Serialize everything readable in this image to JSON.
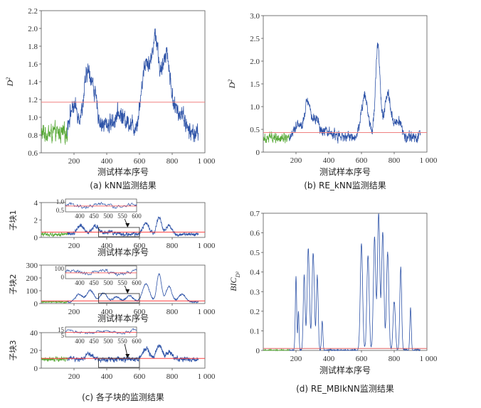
{
  "chart_data": [
    {
      "id": "a",
      "type": "line",
      "caption": "(a) kNN监测结果",
      "xlabel": "测试样本序号",
      "ylabel_main": "D",
      "ylabel_sup": "2",
      "xlim": [
        0,
        1000
      ],
      "ylim": [
        0.6,
        2.2
      ],
      "xticks": [
        200,
        400,
        600,
        800
      ],
      "xticks_last": "1 000",
      "yticks": [
        "0.6",
        "0.8",
        "1.0",
        "1.2",
        "1.4",
        "1.6",
        "1.8",
        "2.0",
        "2.2"
      ],
      "threshold": 1.17,
      "base": 0.82,
      "noise": 0.07,
      "peaks": [
        [
          200,
          0.3,
          40
        ],
        [
          280,
          0.6,
          30
        ],
        [
          320,
          0.4,
          30
        ],
        [
          400,
          0.1,
          60
        ],
        [
          480,
          0.2,
          40
        ],
        [
          540,
          0.1,
          30
        ],
        [
          640,
          0.8,
          40
        ],
        [
          700,
          1.0,
          30
        ],
        [
          760,
          0.8,
          30
        ],
        [
          800,
          0.3,
          40
        ],
        [
          860,
          0.2,
          30
        ]
      ],
      "colors": {
        "normal": "#5aaa3a",
        "fault": "#2f54a8",
        "limit": "#f08080"
      }
    },
    {
      "id": "b",
      "type": "line",
      "caption": "(b) RE_kNN监测结果",
      "xlabel": "测试样本序号",
      "ylabel_main": "D",
      "ylabel_sup": "2",
      "xlim": [
        0,
        1000
      ],
      "ylim": [
        0,
        3.0
      ],
      "xticks": [
        200,
        400,
        600,
        800
      ],
      "xticks_last": "1 000",
      "yticks": [
        "0",
        "0.5",
        "1.0",
        "1.5",
        "2.0",
        "2.5",
        "3.0"
      ],
      "threshold": 0.43,
      "base": 0.33,
      "noise": 0.08,
      "peaks": [
        [
          210,
          0.3,
          30
        ],
        [
          270,
          0.8,
          25
        ],
        [
          320,
          0.4,
          30
        ],
        [
          400,
          0.1,
          40
        ],
        [
          620,
          0.9,
          30
        ],
        [
          700,
          2.0,
          20
        ],
        [
          760,
          1.0,
          25
        ],
        [
          820,
          0.4,
          30
        ]
      ],
      "colors": {
        "normal": "#5aaa3a",
        "fault": "#2f54a8",
        "limit": "#f08080"
      }
    },
    {
      "id": "c1",
      "type": "line",
      "block_label": "子块1",
      "xlabel": "测试样本序号",
      "xlim": [
        0,
        1000
      ],
      "ylim": [
        0,
        4
      ],
      "xticks": [
        200,
        400,
        600,
        800
      ],
      "xticks_last": "1 000",
      "yticks": [
        "0",
        "2",
        "4"
      ],
      "threshold": 0.6,
      "base": 0.35,
      "noise": 0.15,
      "peaks": [
        [
          240,
          1.0,
          30
        ],
        [
          330,
          1.0,
          30
        ],
        [
          420,
          0.3,
          30
        ],
        [
          640,
          1.2,
          30
        ],
        [
          720,
          2.0,
          20
        ],
        [
          780,
          1.0,
          25
        ]
      ],
      "inset": {
        "xlim": [
          350,
          600
        ],
        "yticks": [
          "0.5",
          "1.0"
        ],
        "xticks": [
          "400",
          "450",
          "500",
          "550",
          "600"
        ]
      },
      "colors": {
        "normal": "#5aaa3a",
        "fault": "#2f54a8",
        "limit": "#ff4040"
      }
    },
    {
      "id": "c2",
      "type": "line",
      "block_label": "子块2",
      "xlabel": "测试样本序号",
      "xlim": [
        0,
        1000
      ],
      "ylim": [
        0,
        300
      ],
      "xticks": [
        200,
        400,
        600,
        800
      ],
      "xticks_last": "1 000",
      "yticks": [
        "0",
        "100",
        "200",
        "300"
      ],
      "threshold": 20,
      "base": 12,
      "noise": 4,
      "peaks": [
        [
          230,
          60,
          30
        ],
        [
          300,
          90,
          30
        ],
        [
          380,
          70,
          30
        ],
        [
          460,
          40,
          30
        ],
        [
          540,
          50,
          30
        ],
        [
          640,
          140,
          30
        ],
        [
          720,
          220,
          20
        ],
        [
          780,
          120,
          25
        ],
        [
          860,
          60,
          30
        ]
      ],
      "inset": {
        "xlim": [
          350,
          600
        ],
        "yticks": [
          "0",
          "100"
        ],
        "xticks": [
          "400",
          "450",
          "500",
          "550",
          "600"
        ]
      },
      "colors": {
        "normal": "#5aaa3a",
        "fault": "#2f54a8",
        "limit": "#ff4040"
      }
    },
    {
      "id": "c3",
      "type": "line",
      "block_label": "子块3",
      "xlabel": "",
      "xlim": [
        0,
        1000
      ],
      "ylim": [
        0,
        40
      ],
      "xticks": [
        200,
        400,
        600,
        800
      ],
      "xticks_last": "1 000",
      "yticks": [
        "0",
        "20",
        "40"
      ],
      "threshold": 11,
      "base": 10,
      "noise": 2,
      "peaks": [
        [
          290,
          6,
          30
        ],
        [
          640,
          12,
          30
        ],
        [
          720,
          15,
          25
        ],
        [
          780,
          8,
          25
        ]
      ],
      "inset": {
        "xlim": [
          350,
          600
        ],
        "yticks": [
          "5",
          "15"
        ],
        "xticks": [
          "400",
          "450",
          "500",
          "550",
          "600"
        ]
      },
      "colors": {
        "normal": "#5aaa3a",
        "fault": "#2f54a8",
        "limit": "#ff4040"
      }
    },
    {
      "id": "d",
      "type": "line",
      "caption": "(d) RE_MBIkNN监测结果",
      "xlabel": "测试样本序号",
      "ylabel_main": "BIC",
      "ylabel_sub": "D²",
      "xlim": [
        0,
        1000
      ],
      "ylim": [
        0,
        0.7
      ],
      "xticks": [
        200,
        400,
        600,
        800
      ],
      "xticks_last": "1 000",
      "yticks": [
        "0",
        "0.1",
        "0.2",
        "0.3",
        "0.4",
        "0.5",
        "0.6",
        "0.7"
      ],
      "threshold": 0.01,
      "base": 0.0,
      "noise": 0.005,
      "peaks": [
        [
          200,
          0.38,
          6
        ],
        [
          215,
          0.2,
          5
        ],
        [
          250,
          0.38,
          8
        ],
        [
          275,
          0.52,
          10
        ],
        [
          305,
          0.5,
          10
        ],
        [
          330,
          0.38,
          8
        ],
        [
          360,
          0.15,
          6
        ],
        [
          600,
          0.55,
          10
        ],
        [
          640,
          0.48,
          10
        ],
        [
          680,
          0.58,
          10
        ],
        [
          705,
          0.7,
          10
        ],
        [
          730,
          0.6,
          10
        ],
        [
          760,
          0.5,
          10
        ],
        [
          800,
          0.25,
          10
        ],
        [
          840,
          0.42,
          8
        ],
        [
          900,
          0.22,
          6
        ]
      ],
      "colors": {
        "normal": "#5aaa3a",
        "fault": "#2f54a8",
        "limit": "#e06060"
      }
    }
  ],
  "caption_c": "(c) 各子块的监测结果"
}
